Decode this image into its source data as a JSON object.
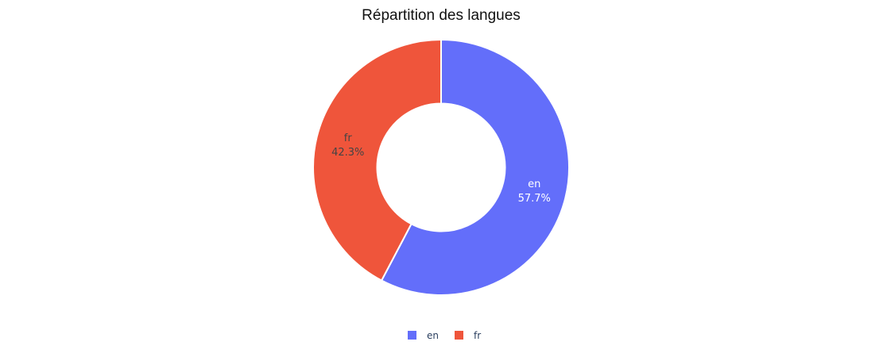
{
  "chart_data": {
    "type": "pie",
    "title": "Répartition des langues",
    "hole": 0.5,
    "legend_position": "bottom-center",
    "slices": [
      {
        "label": "en",
        "percent": 57.7,
        "percent_text": "57.7%",
        "color": "#636efa",
        "text_color": "#ffffff"
      },
      {
        "label": "fr",
        "percent": 42.3,
        "percent_text": "42.3%",
        "color": "#ef553b",
        "text_color": "#444444"
      }
    ]
  }
}
